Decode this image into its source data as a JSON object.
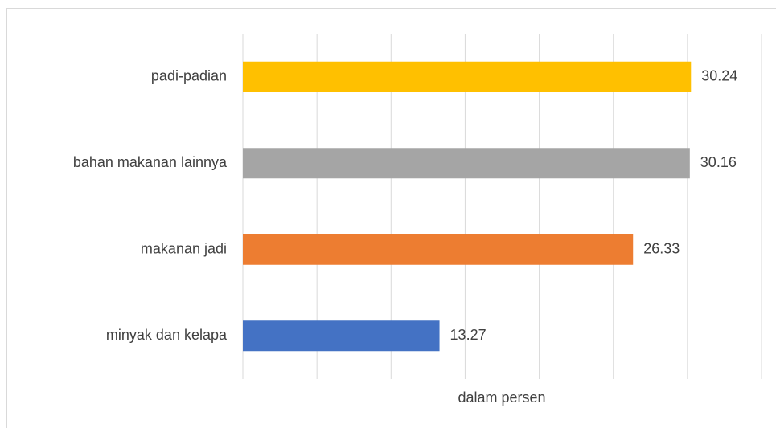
{
  "chart_data": {
    "type": "hbar",
    "categories": [
      "padi-padian",
      "bahan makanan lainnya",
      "makanan jadi",
      "minyak dan kelapa"
    ],
    "values": [
      30.24,
      30.16,
      26.33,
      13.27
    ],
    "colors": [
      "#ffc000",
      "#a5a5a5",
      "#ed7d31",
      "#4472c4"
    ],
    "xlabel": "dalam persen",
    "xlim": [
      0,
      35
    ],
    "xticks": [
      0,
      5,
      10,
      15,
      20,
      25,
      30,
      35
    ],
    "grid": true
  }
}
